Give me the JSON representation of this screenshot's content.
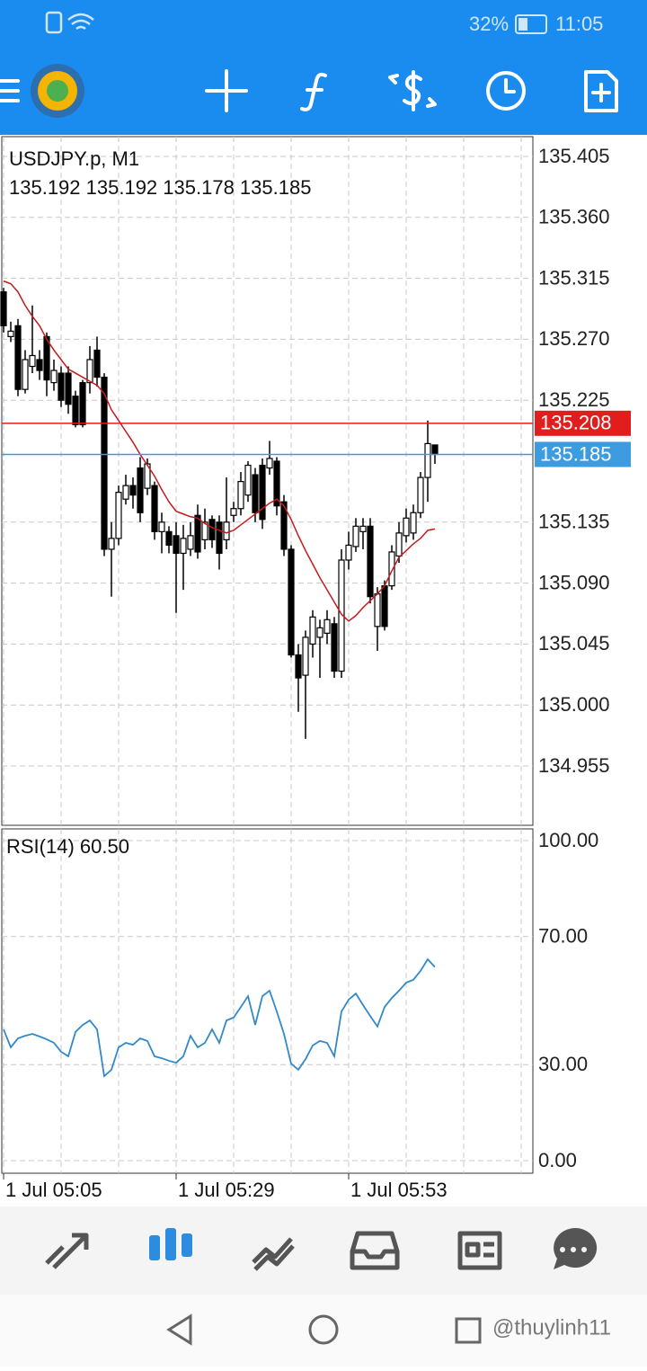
{
  "status_bar": {
    "battery": "32%",
    "time": "11:05"
  },
  "chart_data": [
    {
      "type": "candlestick",
      "title": "USDJPY.p, M1",
      "subtitle": "135.192 135.192 135.178 135.185",
      "up_color": "#ffffff",
      "down_color": "#000000",
      "open": [
        135.305,
        135.272,
        135.28,
        135.233,
        135.25,
        135.255,
        135.272,
        135.238,
        135.245,
        135.245,
        135.228,
        135.238,
        135.238,
        135.262,
        135.242,
        135.115,
        135.123,
        135.152,
        135.162,
        135.175,
        135.16,
        135.162,
        135.128,
        135.128,
        135.125,
        135.112,
        135.115,
        135.14,
        135.122,
        135.137,
        135.135,
        135.122,
        135.14,
        135.145,
        135.155,
        135.17,
        135.177,
        135.175,
        135.18,
        135.15,
        135.115,
        135.037,
        135.022,
        135.045,
        135.05,
        135.053,
        135.06,
        135.025,
        135.107,
        135.117,
        135.128,
        135.132,
        135.058,
        135.088,
        135.088,
        135.11,
        135.125,
        135.127,
        135.142,
        135.168,
        135.192
      ],
      "high": [
        135.308,
        135.283,
        135.285,
        135.262,
        135.295,
        135.262,
        135.275,
        135.255,
        135.25,
        135.25,
        135.232,
        135.24,
        135.265,
        135.272,
        135.245,
        135.135,
        135.162,
        135.17,
        135.168,
        135.183,
        135.182,
        135.165,
        135.142,
        135.132,
        135.135,
        135.133,
        135.135,
        135.148,
        135.145,
        135.14,
        135.14,
        135.168,
        135.15,
        135.172,
        135.18,
        135.175,
        135.182,
        135.195,
        135.183,
        135.155,
        135.118,
        135.045,
        135.055,
        135.07,
        135.063,
        135.07,
        135.065,
        135.115,
        135.128,
        135.138,
        135.138,
        135.138,
        135.087,
        135.092,
        135.118,
        135.135,
        135.145,
        135.148,
        135.172,
        135.21,
        135.192
      ],
      "low": [
        135.275,
        135.268,
        135.228,
        135.23,
        135.245,
        135.24,
        135.228,
        135.232,
        135.22,
        135.215,
        135.205,
        135.205,
        135.23,
        135.235,
        135.11,
        135.08,
        135.118,
        135.148,
        135.145,
        135.135,
        135.155,
        135.122,
        135.112,
        135.112,
        135.068,
        135.085,
        135.11,
        135.108,
        135.115,
        135.116,
        135.1,
        135.115,
        135.135,
        135.14,
        135.15,
        135.135,
        135.13,
        135.17,
        135.14,
        135.11,
        135.035,
        134.995,
        134.975,
        135.035,
        135.02,
        135.045,
        135.02,
        135.02,
        135.1,
        135.113,
        135.115,
        135.075,
        135.04,
        135.055,
        135.085,
        135.105,
        135.12,
        135.122,
        135.138,
        135.15,
        135.178
      ],
      "close": [
        135.28,
        135.276,
        135.233,
        135.255,
        135.258,
        135.247,
        135.24,
        135.247,
        135.225,
        135.222,
        135.207,
        135.207,
        135.255,
        135.242,
        135.115,
        135.123,
        135.157,
        135.162,
        135.155,
        135.142,
        135.178,
        135.128,
        135.135,
        135.118,
        135.112,
        135.123,
        135.125,
        135.113,
        135.135,
        135.122,
        135.112,
        135.135,
        135.145,
        135.165,
        135.177,
        135.142,
        135.137,
        135.182,
        135.147,
        135.115,
        135.037,
        135.02,
        135.05,
        135.065,
        135.057,
        135.063,
        135.025,
        135.107,
        135.118,
        135.132,
        135.132,
        135.08,
        135.082,
        135.058,
        135.113,
        135.127,
        135.138,
        135.142,
        135.168,
        135.193,
        135.185
      ],
      "moving_average": {
        "color": "#c41a1a",
        "values": [
          135.313,
          135.311,
          135.305,
          135.295,
          135.287,
          135.28,
          135.27,
          135.262,
          135.255,
          135.248,
          135.245,
          135.242,
          135.239,
          135.236,
          135.23,
          135.218,
          135.21,
          135.202,
          135.194,
          135.185,
          135.177,
          135.169,
          135.159,
          135.15,
          135.143,
          135.141,
          135.139,
          135.138,
          135.134,
          135.131,
          135.129,
          135.127,
          135.129,
          135.133,
          135.137,
          135.141,
          135.145,
          135.149,
          135.152,
          135.147,
          135.137,
          135.125,
          135.114,
          135.104,
          135.094,
          135.085,
          135.076,
          135.067,
          135.062,
          135.066,
          135.072,
          135.077,
          135.082,
          135.088,
          135.099,
          135.109,
          135.114,
          135.119,
          135.123,
          135.129,
          135.13
        ]
      },
      "price_lines": [
        {
          "value": 135.208,
          "color": "#e01e1e"
        },
        {
          "value": 135.185,
          "color": "#3d9be0"
        }
      ],
      "xlim": [
        -0.25,
        73.625
      ],
      "xticks": [
        {
          "value": 0,
          "label": "1 Jul 05:05"
        },
        {
          "value": 24,
          "label": "1 Jul 05:29"
        },
        {
          "value": 48,
          "label": "1 Jul 05:53"
        }
      ],
      "ylim": [
        134.9112,
        135.4196
      ],
      "yticks": [
        135.405,
        {
          "value": 135.36,
          "label": "135.360"
        },
        135.315,
        {
          "value": 135.27,
          "label": "135.270"
        },
        135.225,
        135.135,
        {
          "value": 135.09,
          "label": "135.090"
        },
        135.045,
        {
          "value": 135,
          "label": "135.000"
        },
        134.955
      ],
      "grid": true
    },
    {
      "type": "line",
      "title": "RSI(14) 60.50",
      "color": "#3189c8",
      "values": [
        41.0,
        35.4,
        38.2,
        39.0,
        39.6,
        38.8,
        37.9,
        36.8,
        34.0,
        32.6,
        40.2,
        42.4,
        43.8,
        41.0,
        26.4,
        28.4,
        35.4,
        36.8,
        36.2,
        38.2,
        37.4,
        32.6,
        32.0,
        31.2,
        30.6,
        32.6,
        39.0,
        35.4,
        36.8,
        41.0,
        36.8,
        43.8,
        44.7,
        48.0,
        51.4,
        42.4,
        51.4,
        53.1,
        46.6,
        39.6,
        30.3,
        28.4,
        31.7,
        36.0,
        37.4,
        36.8,
        32.6,
        46.6,
        50.3,
        52.2,
        48.6,
        45.2,
        41.9,
        48.0,
        50.8,
        53.1,
        55.6,
        56.5,
        59.3,
        62.9,
        60.5
      ],
      "ylim": [
        -3.93,
        103.65
      ],
      "yticks": [
        {
          "value": 100,
          "label": "100.00"
        },
        {
          "value": 70,
          "label": "70.00"
        },
        {
          "value": 30,
          "label": "30.00"
        },
        {
          "value": 0,
          "label": "0.00"
        }
      ],
      "grid": true
    }
  ],
  "watermark": "@thuylinh11"
}
